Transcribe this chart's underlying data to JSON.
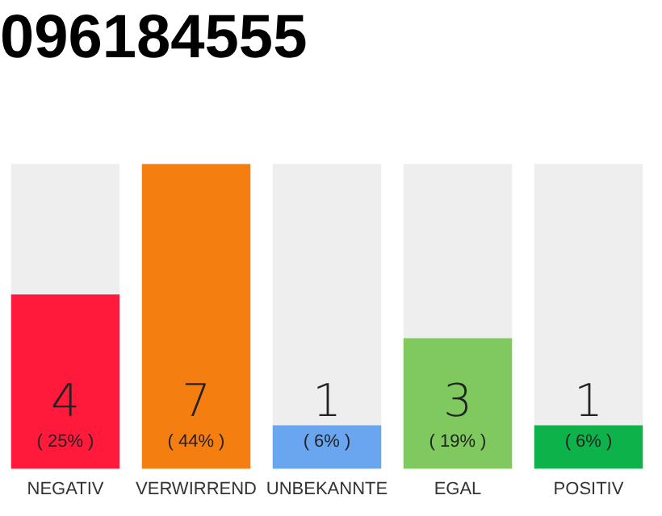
{
  "chart_data": {
    "type": "bar",
    "title": "096184555",
    "categories": [
      "NEGATIV",
      "VERWIRREND",
      "UNBEKANNTE",
      "EGAL",
      "POSITIV"
    ],
    "values": [
      4,
      7,
      1,
      3,
      1
    ],
    "colors": [
      "#ff1a3c",
      "#f47f10",
      "#6aa6f0",
      "#80c95f",
      "#0db34a"
    ],
    "ylim": [
      0,
      7
    ],
    "data_labels": true,
    "tick_labels": "x",
    "legend": false,
    "grid": false,
    "annotations": [
      "( 25% )",
      "( 44% )",
      "( 6% )",
      "( 19% )",
      "( 6% )"
    ]
  }
}
